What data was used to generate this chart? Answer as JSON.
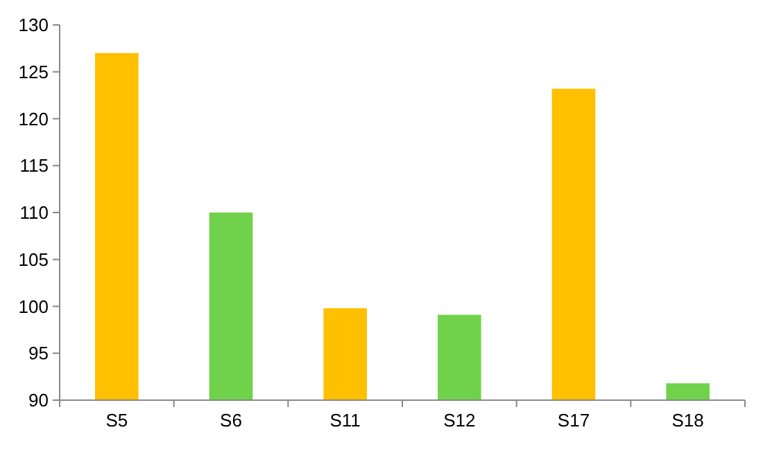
{
  "chart_data": {
    "type": "bar",
    "categories": [
      "S5",
      "S6",
      "S11",
      "S12",
      "S17",
      "S18"
    ],
    "values": [
      127,
      110,
      99.8,
      99.1,
      123.2,
      91.8
    ],
    "colors": [
      "#ffc000",
      "#6fd24a",
      "#ffc000",
      "#6fd24a",
      "#ffc000",
      "#6fd24a"
    ],
    "ylim": [
      90,
      130
    ],
    "yticks": [
      90,
      95,
      100,
      105,
      110,
      115,
      120,
      125,
      130
    ],
    "grid": false
  }
}
